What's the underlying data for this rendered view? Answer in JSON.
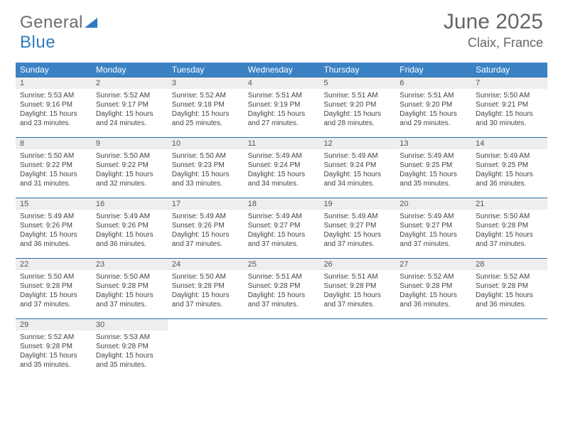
{
  "logo": {
    "text1": "General",
    "text2": "Blue"
  },
  "title": {
    "month": "June 2025",
    "location": "Claix, France"
  },
  "colors": {
    "header_bg": "#3B82C4",
    "week_border": "#2F6FA8",
    "daynum_bg": "#EEEEEE",
    "text": "#444444"
  },
  "dayNames": [
    "Sunday",
    "Monday",
    "Tuesday",
    "Wednesday",
    "Thursday",
    "Friday",
    "Saturday"
  ],
  "weeks": [
    [
      {
        "n": "1",
        "sr": "5:53 AM",
        "ss": "9:16 PM",
        "dl": "15 hours and 23 minutes."
      },
      {
        "n": "2",
        "sr": "5:52 AM",
        "ss": "9:17 PM",
        "dl": "15 hours and 24 minutes."
      },
      {
        "n": "3",
        "sr": "5:52 AM",
        "ss": "9:18 PM",
        "dl": "15 hours and 25 minutes."
      },
      {
        "n": "4",
        "sr": "5:51 AM",
        "ss": "9:19 PM",
        "dl": "15 hours and 27 minutes."
      },
      {
        "n": "5",
        "sr": "5:51 AM",
        "ss": "9:20 PM",
        "dl": "15 hours and 28 minutes."
      },
      {
        "n": "6",
        "sr": "5:51 AM",
        "ss": "9:20 PM",
        "dl": "15 hours and 29 minutes."
      },
      {
        "n": "7",
        "sr": "5:50 AM",
        "ss": "9:21 PM",
        "dl": "15 hours and 30 minutes."
      }
    ],
    [
      {
        "n": "8",
        "sr": "5:50 AM",
        "ss": "9:22 PM",
        "dl": "15 hours and 31 minutes."
      },
      {
        "n": "9",
        "sr": "5:50 AM",
        "ss": "9:22 PM",
        "dl": "15 hours and 32 minutes."
      },
      {
        "n": "10",
        "sr": "5:50 AM",
        "ss": "9:23 PM",
        "dl": "15 hours and 33 minutes."
      },
      {
        "n": "11",
        "sr": "5:49 AM",
        "ss": "9:24 PM",
        "dl": "15 hours and 34 minutes."
      },
      {
        "n": "12",
        "sr": "5:49 AM",
        "ss": "9:24 PM",
        "dl": "15 hours and 34 minutes."
      },
      {
        "n": "13",
        "sr": "5:49 AM",
        "ss": "9:25 PM",
        "dl": "15 hours and 35 minutes."
      },
      {
        "n": "14",
        "sr": "5:49 AM",
        "ss": "9:25 PM",
        "dl": "15 hours and 36 minutes."
      }
    ],
    [
      {
        "n": "15",
        "sr": "5:49 AM",
        "ss": "9:26 PM",
        "dl": "15 hours and 36 minutes."
      },
      {
        "n": "16",
        "sr": "5:49 AM",
        "ss": "9:26 PM",
        "dl": "15 hours and 36 minutes."
      },
      {
        "n": "17",
        "sr": "5:49 AM",
        "ss": "9:26 PM",
        "dl": "15 hours and 37 minutes."
      },
      {
        "n": "18",
        "sr": "5:49 AM",
        "ss": "9:27 PM",
        "dl": "15 hours and 37 minutes."
      },
      {
        "n": "19",
        "sr": "5:49 AM",
        "ss": "9:27 PM",
        "dl": "15 hours and 37 minutes."
      },
      {
        "n": "20",
        "sr": "5:49 AM",
        "ss": "9:27 PM",
        "dl": "15 hours and 37 minutes."
      },
      {
        "n": "21",
        "sr": "5:50 AM",
        "ss": "9:28 PM",
        "dl": "15 hours and 37 minutes."
      }
    ],
    [
      {
        "n": "22",
        "sr": "5:50 AM",
        "ss": "9:28 PM",
        "dl": "15 hours and 37 minutes."
      },
      {
        "n": "23",
        "sr": "5:50 AM",
        "ss": "9:28 PM",
        "dl": "15 hours and 37 minutes."
      },
      {
        "n": "24",
        "sr": "5:50 AM",
        "ss": "9:28 PM",
        "dl": "15 hours and 37 minutes."
      },
      {
        "n": "25",
        "sr": "5:51 AM",
        "ss": "9:28 PM",
        "dl": "15 hours and 37 minutes."
      },
      {
        "n": "26",
        "sr": "5:51 AM",
        "ss": "9:28 PM",
        "dl": "15 hours and 37 minutes."
      },
      {
        "n": "27",
        "sr": "5:52 AM",
        "ss": "9:28 PM",
        "dl": "15 hours and 36 minutes."
      },
      {
        "n": "28",
        "sr": "5:52 AM",
        "ss": "9:28 PM",
        "dl": "15 hours and 36 minutes."
      }
    ],
    [
      {
        "n": "29",
        "sr": "5:52 AM",
        "ss": "9:28 PM",
        "dl": "15 hours and 35 minutes."
      },
      {
        "n": "30",
        "sr": "5:53 AM",
        "ss": "9:28 PM",
        "dl": "15 hours and 35 minutes."
      },
      null,
      null,
      null,
      null,
      null
    ]
  ],
  "labels": {
    "sunrise": "Sunrise: ",
    "sunset": "Sunset: ",
    "daylight": "Daylight: "
  }
}
